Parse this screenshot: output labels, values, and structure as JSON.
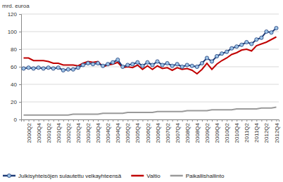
{
  "chart_data": {
    "type": "line",
    "y_label": "mrd. euroa",
    "categories": [
      null,
      "2000Q2",
      null,
      "2000Q4",
      null,
      "2001Q2",
      null,
      "2001Q4",
      null,
      "2002Q2",
      null,
      "2002Q4",
      null,
      "2003Q2",
      null,
      "2003Q4",
      null,
      "2004Q2",
      null,
      "2004Q4",
      null,
      "2005Q2",
      null,
      "2005Q4",
      null,
      "2006Q2",
      null,
      "2006Q4",
      null,
      "2007Q2",
      null,
      "2007Q4",
      null,
      "2008Q2",
      null,
      "2008Q4",
      null,
      "2009Q2",
      null,
      "2009Q4",
      null,
      "2010Q2",
      null,
      "2010Q4",
      null,
      "2011Q2",
      null,
      "2011Q4",
      null,
      "2012Q2",
      null,
      "2012Q4"
    ],
    "series": [
      {
        "name": "Julkisyhteisöjen sulautettu velkayhteensä",
        "color": "#1f3c78",
        "marker": "circle",
        "values": [
          58,
          59,
          58,
          59,
          58,
          59,
          58,
          59,
          56,
          57,
          57,
          59,
          62,
          64,
          63,
          64,
          61,
          63,
          65,
          68,
          60,
          62,
          63,
          65,
          61,
          65,
          62,
          66,
          62,
          64,
          61,
          63,
          60,
          62,
          61,
          60,
          64,
          70,
          66,
          72,
          75,
          77,
          81,
          83,
          85,
          88,
          86,
          91,
          93,
          100,
          99,
          104
        ]
      },
      {
        "name": "Valtio",
        "color": "#c00000",
        "values": [
          70,
          70,
          67,
          67,
          67,
          66,
          64,
          64,
          62,
          62,
          62,
          61,
          64,
          66,
          65,
          66,
          60,
          62,
          63,
          65,
          59,
          60,
          59,
          62,
          57,
          61,
          57,
          61,
          58,
          59,
          56,
          59,
          57,
          58,
          56,
          52,
          57,
          64,
          57,
          63,
          67,
          70,
          74,
          76,
          79,
          80,
          78,
          84,
          86,
          88,
          91,
          94
        ]
      },
      {
        "name": "Paikallishallinto",
        "color": "#9a9a9a",
        "values": [
          5,
          5,
          5,
          5,
          5,
          5,
          5,
          5,
          5,
          5,
          6,
          6,
          6,
          6,
          6,
          6,
          7,
          7,
          7,
          7,
          7,
          8,
          8,
          8,
          8,
          8,
          8,
          9,
          9,
          9,
          9,
          9,
          9,
          10,
          10,
          10,
          10,
          10,
          11,
          11,
          11,
          11,
          11,
          12,
          12,
          12,
          12,
          12,
          13,
          13,
          13,
          14
        ]
      }
    ],
    "ylim": [
      0,
      120
    ],
    "yticks": [
      0,
      20,
      40,
      60,
      80,
      100,
      120
    ],
    "grid": true,
    "legend": "bottom"
  }
}
